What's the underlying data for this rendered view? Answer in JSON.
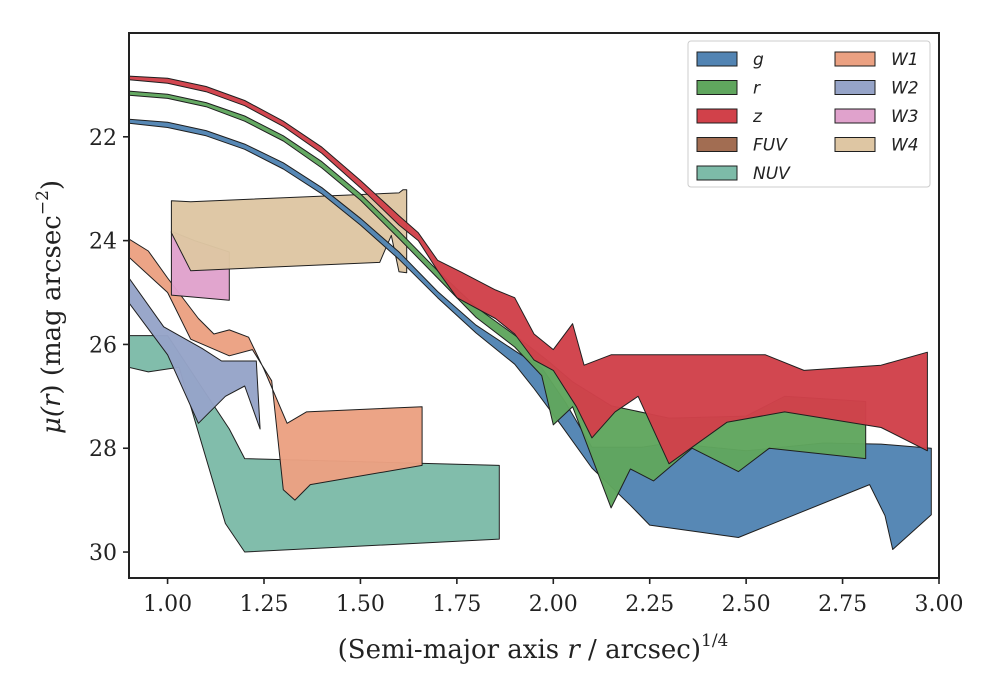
{
  "chart_data": {
    "type": "area",
    "title": "",
    "xlabel": {
      "main": "(Semi-major axis ",
      "var": "r",
      "sep": " / arcsec)",
      "sup": "1/4"
    },
    "ylabel": {
      "main": "μ(",
      "var": "r",
      "unit": ") (mag arcsec",
      "sup": "−2",
      "close": ")"
    },
    "xlim": [
      0.9,
      3.0
    ],
    "ylim": [
      30.5,
      20.0
    ],
    "y_inverted": true,
    "grid": false,
    "xticks": [
      1.0,
      1.25,
      1.5,
      1.75,
      2.0,
      2.25,
      2.5,
      2.75,
      3.0
    ],
    "xtick_labels": [
      "1.00",
      "1.25",
      "1.50",
      "1.75",
      "2.00",
      "2.25",
      "2.50",
      "2.75",
      "3.00"
    ],
    "yticks": [
      22,
      24,
      26,
      28,
      30
    ],
    "ytick_labels": [
      "22",
      "24",
      "26",
      "28",
      "30"
    ],
    "legend": {
      "placement": "top-right",
      "columns": 2
    },
    "series": [
      {
        "name": "NUV",
        "color": "#7dbba8",
        "upper": [
          [
            0.9,
            25.83
          ],
          [
            1.0,
            25.83
          ],
          [
            1.16,
            27.63
          ],
          [
            1.2,
            28.2
          ],
          [
            1.86,
            28.33
          ]
        ],
        "lower": [
          [
            0.9,
            26.44
          ],
          [
            0.95,
            26.53
          ],
          [
            1.03,
            26.44
          ],
          [
            1.15,
            29.45
          ],
          [
            1.2,
            30.0
          ],
          [
            1.86,
            29.75
          ]
        ]
      },
      {
        "name": "W2",
        "color": "#96a4c8",
        "upper": [
          [
            0.9,
            24.72
          ],
          [
            0.99,
            25.66
          ],
          [
            1.09,
            26.08
          ],
          [
            1.14,
            26.32
          ],
          [
            1.23,
            26.32
          ],
          [
            1.24,
            27.63
          ]
        ],
        "lower": [
          [
            0.9,
            25.2
          ],
          [
            1.0,
            26.2
          ],
          [
            1.08,
            27.52
          ],
          [
            1.15,
            27.0
          ],
          [
            1.2,
            26.8
          ],
          [
            1.24,
            27.63
          ]
        ]
      },
      {
        "name": "W1",
        "color": "#eba182",
        "upper": [
          [
            0.9,
            23.97
          ],
          [
            0.95,
            24.2
          ],
          [
            1.0,
            24.72
          ],
          [
            1.08,
            25.5
          ],
          [
            1.12,
            25.8
          ],
          [
            1.16,
            25.72
          ],
          [
            1.21,
            25.86
          ],
          [
            1.25,
            26.48
          ],
          [
            1.31,
            27.52
          ],
          [
            1.36,
            27.3
          ],
          [
            1.66,
            27.2
          ]
        ],
        "lower": [
          [
            0.9,
            24.32
          ],
          [
            1.0,
            25.0
          ],
          [
            1.06,
            25.9
          ],
          [
            1.16,
            26.22
          ],
          [
            1.22,
            26.1
          ],
          [
            1.27,
            26.7
          ],
          [
            1.3,
            28.8
          ],
          [
            1.33,
            29.0
          ],
          [
            1.37,
            28.7
          ],
          [
            1.66,
            28.33
          ]
        ]
      },
      {
        "name": "W3",
        "color": "#e0a2cc",
        "upper": [
          [
            1.01,
            23.82
          ],
          [
            1.07,
            24.0
          ],
          [
            1.16,
            24.22
          ]
        ],
        "lower": [
          [
            1.01,
            25.05
          ],
          [
            1.16,
            25.15
          ]
        ]
      },
      {
        "name": "W4",
        "color": "#dec6a3",
        "upper": [
          [
            1.01,
            23.23
          ],
          [
            1.06,
            23.25
          ],
          [
            1.6,
            23.08
          ],
          [
            1.61,
            23.02
          ],
          [
            1.62,
            23.02
          ]
        ],
        "lower": [
          [
            1.01,
            23.85
          ],
          [
            1.06,
            24.58
          ],
          [
            1.55,
            24.42
          ],
          [
            1.58,
            23.9
          ],
          [
            1.6,
            24.6
          ],
          [
            1.62,
            24.62
          ]
        ]
      },
      {
        "name": "g",
        "color": "#5284b3",
        "upper": [
          [
            0.9,
            21.66
          ],
          [
            1.0,
            21.72
          ],
          [
            1.1,
            21.88
          ],
          [
            1.2,
            22.14
          ],
          [
            1.3,
            22.5
          ],
          [
            1.4,
            22.98
          ],
          [
            1.5,
            23.57
          ],
          [
            1.6,
            24.22
          ],
          [
            1.7,
            24.98
          ],
          [
            1.8,
            25.63
          ],
          [
            1.9,
            26.12
          ],
          [
            1.97,
            26.45
          ],
          [
            2.03,
            27.1
          ],
          [
            2.1,
            27.98
          ],
          [
            2.23,
            27.98
          ],
          [
            2.3,
            27.9
          ],
          [
            2.5,
            28.05
          ],
          [
            2.7,
            27.9
          ],
          [
            2.85,
            27.92
          ],
          [
            2.98,
            28.0
          ]
        ],
        "lower": [
          [
            0.9,
            21.74
          ],
          [
            1.0,
            21.82
          ],
          [
            1.1,
            21.98
          ],
          [
            1.2,
            22.24
          ],
          [
            1.3,
            22.62
          ],
          [
            1.4,
            23.1
          ],
          [
            1.5,
            23.7
          ],
          [
            1.6,
            24.36
          ],
          [
            1.7,
            25.1
          ],
          [
            1.8,
            25.78
          ],
          [
            1.9,
            26.38
          ],
          [
            1.95,
            26.85
          ],
          [
            2.02,
            27.55
          ],
          [
            2.1,
            28.38
          ],
          [
            2.2,
            29.1
          ],
          [
            2.25,
            29.48
          ],
          [
            2.48,
            29.72
          ],
          [
            2.82,
            28.7
          ],
          [
            2.86,
            29.3
          ],
          [
            2.88,
            29.95
          ],
          [
            2.98,
            29.28
          ]
        ]
      },
      {
        "name": "r",
        "color": "#60a65e",
        "upper": [
          [
            0.9,
            21.12
          ],
          [
            1.0,
            21.18
          ],
          [
            1.1,
            21.34
          ],
          [
            1.2,
            21.6
          ],
          [
            1.3,
            21.98
          ],
          [
            1.4,
            22.48
          ],
          [
            1.5,
            23.1
          ],
          [
            1.6,
            23.82
          ],
          [
            1.7,
            24.58
          ],
          [
            1.8,
            25.28
          ],
          [
            1.9,
            25.82
          ],
          [
            1.98,
            26.28
          ],
          [
            2.05,
            26.72
          ],
          [
            2.15,
            27.18
          ],
          [
            2.3,
            27.42
          ],
          [
            2.5,
            27.38
          ],
          [
            2.6,
            27.0
          ],
          [
            2.81,
            27.1
          ]
        ],
        "lower": [
          [
            0.9,
            21.2
          ],
          [
            1.0,
            21.26
          ],
          [
            1.1,
            21.42
          ],
          [
            1.2,
            21.7
          ],
          [
            1.3,
            22.08
          ],
          [
            1.4,
            22.6
          ],
          [
            1.5,
            23.22
          ],
          [
            1.6,
            23.96
          ],
          [
            1.7,
            24.72
          ],
          [
            1.8,
            25.48
          ],
          [
            1.9,
            26.05
          ],
          [
            1.97,
            26.6
          ],
          [
            2.0,
            27.55
          ],
          [
            2.05,
            27.2
          ],
          [
            2.15,
            29.15
          ],
          [
            2.2,
            28.4
          ],
          [
            2.26,
            28.63
          ],
          [
            2.36,
            28.0
          ],
          [
            2.48,
            28.45
          ],
          [
            2.56,
            28.0
          ],
          [
            2.81,
            28.2
          ]
        ]
      },
      {
        "name": "z",
        "color": "#d1414a",
        "upper": [
          [
            0.9,
            20.83
          ],
          [
            1.0,
            20.87
          ],
          [
            1.1,
            21.03
          ],
          [
            1.2,
            21.3
          ],
          [
            1.3,
            21.7
          ],
          [
            1.4,
            22.2
          ],
          [
            1.5,
            22.84
          ],
          [
            1.6,
            23.52
          ],
          [
            1.65,
            23.85
          ],
          [
            1.7,
            24.38
          ],
          [
            1.76,
            24.6
          ],
          [
            1.85,
            24.95
          ],
          [
            1.9,
            25.1
          ],
          [
            1.95,
            25.8
          ],
          [
            2.0,
            26.1
          ],
          [
            2.05,
            25.6
          ],
          [
            2.08,
            26.4
          ],
          [
            2.15,
            26.2
          ],
          [
            2.35,
            26.2
          ],
          [
            2.55,
            26.2
          ],
          [
            2.65,
            26.5
          ],
          [
            2.85,
            26.4
          ],
          [
            2.97,
            26.15
          ]
        ],
        "lower": [
          [
            0.9,
            20.9
          ],
          [
            1.0,
            20.97
          ],
          [
            1.1,
            21.13
          ],
          [
            1.2,
            21.4
          ],
          [
            1.3,
            21.8
          ],
          [
            1.4,
            22.32
          ],
          [
            1.5,
            22.98
          ],
          [
            1.6,
            23.7
          ],
          [
            1.65,
            24.0
          ],
          [
            1.7,
            24.58
          ],
          [
            1.75,
            25.1
          ],
          [
            1.85,
            25.5
          ],
          [
            1.9,
            25.8
          ],
          [
            1.95,
            26.3
          ],
          [
            2.0,
            26.5
          ],
          [
            2.06,
            27.2
          ],
          [
            2.1,
            27.8
          ],
          [
            2.16,
            27.3
          ],
          [
            2.22,
            27.0
          ],
          [
            2.3,
            28.3
          ],
          [
            2.45,
            27.5
          ],
          [
            2.6,
            27.3
          ],
          [
            2.85,
            27.6
          ],
          [
            2.97,
            28.05
          ]
        ]
      },
      {
        "name": "FUV",
        "color": "#a26d52",
        "upper": [],
        "lower": []
      }
    ]
  }
}
